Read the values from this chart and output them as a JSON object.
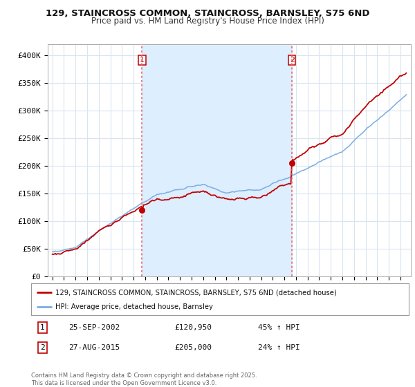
{
  "title": "129, STAINCROSS COMMON, STAINCROSS, BARNSLEY, S75 6ND",
  "subtitle": "Price paid vs. HM Land Registry's House Price Index (HPI)",
  "ylim": [
    0,
    420000
  ],
  "yticks": [
    0,
    50000,
    100000,
    150000,
    200000,
    250000,
    300000,
    350000,
    400000
  ],
  "ytick_labels": [
    "£0",
    "£50K",
    "£100K",
    "£150K",
    "£200K",
    "£250K",
    "£300K",
    "£350K",
    "£400K"
  ],
  "hpi_color": "#7aade0",
  "price_color": "#c00000",
  "purchase1_year": 2002.73,
  "purchase1_price": 120950,
  "purchase1_hpi_pct": "45%",
  "purchase1_date": "25-SEP-2002",
  "purchase2_year": 2015.65,
  "purchase2_price": 205000,
  "purchase2_hpi_pct": "24%",
  "purchase2_date": "27-AUG-2015",
  "legend_line1": "129, STAINCROSS COMMON, STAINCROSS, BARNSLEY, S75 6ND (detached house)",
  "legend_line2": "HPI: Average price, detached house, Barnsley",
  "footer": "Contains HM Land Registry data © Crown copyright and database right 2025.\nThis data is licensed under the Open Government Licence v3.0.",
  "background_color": "#ffffff",
  "grid_color": "#d8e4f0",
  "vline_color": "#e86060",
  "shade_color": "#ddeeff"
}
